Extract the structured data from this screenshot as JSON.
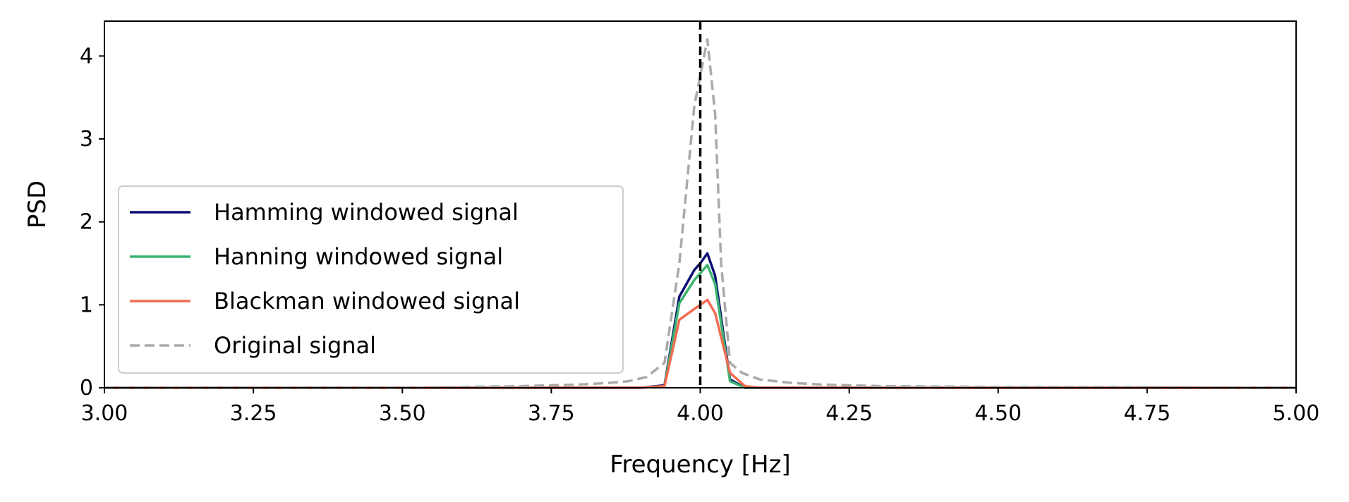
{
  "chart_data": {
    "type": "line",
    "xlabel": "Frequency [Hz]",
    "ylabel": "PSD",
    "xlim": [
      3.0,
      5.0
    ],
    "ylim": [
      0,
      4.42
    ],
    "xticks": [
      3.0,
      3.25,
      3.5,
      3.75,
      4.0,
      4.25,
      4.5,
      4.75,
      5.0
    ],
    "xtick_labels": [
      "3.00",
      "3.25",
      "3.50",
      "3.75",
      "4.00",
      "4.25",
      "4.50",
      "4.75",
      "5.00"
    ],
    "yticks": [
      0,
      1,
      2,
      3,
      4
    ],
    "ytick_labels": [
      "0",
      "1",
      "2",
      "3",
      "4"
    ],
    "grid": false,
    "legend_position": "lower-left",
    "vline": {
      "x": 4.0,
      "color": "#000000",
      "style": "dashed"
    },
    "series": [
      {
        "name": "Hamming windowed signal",
        "color": "#0b0f72",
        "style": "solid",
        "x": [
          3.0,
          3.5,
          3.9,
          3.94,
          3.965,
          3.99,
          4.0,
          4.012,
          4.025,
          4.05,
          4.075,
          4.1,
          5.0
        ],
        "y": [
          0,
          0,
          0,
          0.03,
          1.1,
          1.42,
          1.5,
          1.62,
          1.35,
          0.1,
          0.0,
          0,
          0
        ]
      },
      {
        "name": "Hanning windowed signal",
        "color": "#3cb371",
        "style": "solid",
        "x": [
          3.0,
          3.5,
          3.9,
          3.94,
          3.965,
          3.99,
          4.0,
          4.012,
          4.025,
          4.05,
          4.075,
          4.1,
          5.0
        ],
        "y": [
          0,
          0,
          0,
          0.02,
          1.02,
          1.3,
          1.38,
          1.48,
          1.25,
          0.08,
          0.0,
          0,
          0
        ]
      },
      {
        "name": "Blackman windowed signal",
        "color": "#f26b50",
        "style": "solid",
        "x": [
          3.0,
          3.5,
          3.9,
          3.94,
          3.965,
          3.99,
          4.0,
          4.012,
          4.025,
          4.05,
          4.075,
          4.1,
          5.0
        ],
        "y": [
          0,
          0,
          0,
          0.02,
          0.82,
          0.95,
          1.0,
          1.06,
          0.9,
          0.18,
          0.02,
          0,
          0
        ]
      },
      {
        "name": "Original signal",
        "color": "#aaaaaa",
        "style": "dashed",
        "x": [
          3.0,
          3.5,
          3.6,
          3.7,
          3.8,
          3.85,
          3.88,
          3.91,
          3.94,
          3.965,
          3.99,
          4.012,
          4.025,
          4.035,
          4.05,
          4.07,
          4.1,
          4.15,
          4.2,
          4.3,
          4.5,
          4.7,
          5.0
        ],
        "y": [
          0.0,
          0.0,
          0.01,
          0.02,
          0.04,
          0.06,
          0.08,
          0.13,
          0.3,
          1.5,
          3.4,
          4.2,
          3.3,
          1.5,
          0.3,
          0.18,
          0.1,
          0.06,
          0.04,
          0.02,
          0.01,
          0.01,
          0.0
        ]
      }
    ]
  }
}
